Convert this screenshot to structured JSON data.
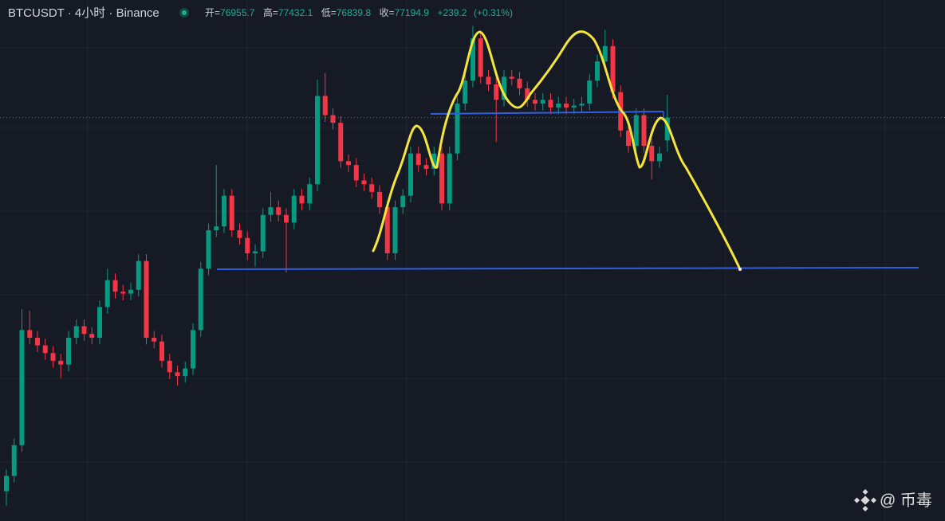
{
  "chart_data": {
    "type": "candlestick",
    "header": {
      "symbol": "BTCUSDT · 4小时 · Binance",
      "open_label": "开=",
      "high_label": "高=",
      "low_label": "低=",
      "close_label": "收=",
      "change": {
        "value": 239.2,
        "label": "+239.2"
      },
      "change_pct": {
        "value": 0.31,
        "label": "(+0.31%)"
      }
    },
    "watermark": "@ 币毒",
    "up_color": "#089981",
    "down_color": "#f23645",
    "ylim": [
      72990,
      78420
    ],
    "open": [
      73300,
      73460,
      73780,
      74980,
      74900,
      74820,
      74740,
      74660,
      74620,
      74900,
      75020,
      74940,
      74900,
      75220,
      75500,
      75380,
      75360,
      75400,
      75700,
      74900,
      74860,
      74660,
      74540,
      74500,
      74580,
      74980,
      75620,
      76020,
      76060,
      76380,
      76020,
      75940,
      75780,
      75800,
      76180,
      76260,
      76180,
      76100,
      76380,
      76300,
      76500,
      77420,
      77220,
      77140,
      76740,
      76700,
      76540,
      76500,
      76420,
      76260,
      75780,
      76260,
      76380,
      76820,
      76700,
      76660,
      76820,
      76300,
      76820,
      77340,
      77580,
      78020,
      77620,
      77540,
      77380,
      77620,
      77600,
      77500,
      77380,
      77340,
      77380,
      77300,
      77340,
      77300,
      77320,
      77340,
      77580,
      77780,
      77940,
      77460,
      77060,
      76900,
      77220,
      76900,
      76740,
      76955.7
    ],
    "high": [
      73530,
      73850,
      75200,
      75180,
      74970,
      74890,
      74810,
      74730,
      74970,
      75090,
      75090,
      75010,
      75290,
      75620,
      75570,
      75450,
      75470,
      75770,
      75770,
      74970,
      74930,
      74730,
      74610,
      74650,
      75050,
      75690,
      76090,
      76700,
      76450,
      76450,
      76090,
      76010,
      75870,
      76250,
      76420,
      76330,
      76250,
      76450,
      76450,
      76570,
      77590,
      77660,
      77290,
      77210,
      76810,
      76770,
      76610,
      76570,
      76490,
      76330,
      76330,
      76450,
      76890,
      76890,
      76770,
      76890,
      76890,
      76890,
      77410,
      77650,
      78150,
      78090,
      77690,
      77610,
      77690,
      77690,
      77670,
      77570,
      77450,
      77450,
      77450,
      77410,
      77410,
      77390,
      77410,
      77650,
      77850,
      78110,
      78010,
      77530,
      77130,
      77290,
      77290,
      76970,
      76890,
      77432.1
    ],
    "low": [
      73150,
      73390,
      73710,
      74830,
      74750,
      74670,
      74590,
      74480,
      74550,
      74830,
      74870,
      74830,
      74830,
      75150,
      75310,
      75290,
      75290,
      75330,
      74830,
      74790,
      74590,
      74470,
      74400,
      74430,
      74510,
      74910,
      75550,
      75950,
      75990,
      75950,
      75870,
      75710,
      75640,
      75730,
      76110,
      76110,
      75580,
      76030,
      76230,
      76230,
      76430,
      77150,
      77070,
      76670,
      76630,
      76470,
      76430,
      76350,
      76190,
      75710,
      75710,
      76190,
      76310,
      76630,
      76590,
      76590,
      76230,
      76230,
      76750,
      77270,
      77510,
      77550,
      77470,
      76940,
      77310,
      77530,
      77430,
      77310,
      77270,
      77270,
      77230,
      77230,
      77230,
      77230,
      77250,
      77270,
      77510,
      77710,
      77390,
      76990,
      76830,
      76830,
      76830,
      76550,
      76670,
      76839.8
    ],
    "close": [
      73460,
      73780,
      74980,
      74900,
      74820,
      74740,
      74660,
      74620,
      74900,
      75020,
      74940,
      74900,
      75220,
      75500,
      75380,
      75360,
      75400,
      75700,
      74900,
      74860,
      74660,
      74540,
      74500,
      74580,
      74980,
      75620,
      76020,
      76060,
      76380,
      76020,
      75940,
      75780,
      75800,
      76180,
      76260,
      76180,
      76100,
      76380,
      76300,
      76500,
      77420,
      77220,
      77140,
      76740,
      76700,
      76540,
      76500,
      76420,
      76260,
      75780,
      76260,
      76380,
      76820,
      76700,
      76660,
      76820,
      76300,
      76820,
      77340,
      77580,
      78020,
      77620,
      77540,
      77380,
      77620,
      77600,
      77500,
      77380,
      77340,
      77380,
      77300,
      77340,
      77300,
      77320,
      77340,
      77580,
      77780,
      77940,
      77460,
      77060,
      76900,
      77220,
      76900,
      76740,
      76820,
      77194.9
    ]
  }
}
